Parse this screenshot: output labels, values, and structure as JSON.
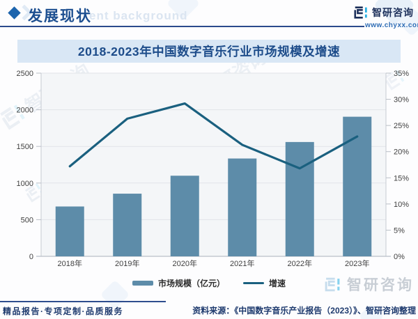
{
  "header": {
    "title": "发展现状",
    "ghost_text": "ent background",
    "brand_name": "智研咨询",
    "brand_url": "www.chyxx.com"
  },
  "watermark": {
    "text": "智研咨询"
  },
  "chart_data": {
    "type": "bar+line",
    "title": "2018-2023年中国数字音乐行业市场规模及增速",
    "categories": [
      "2018年",
      "2019年",
      "2020年",
      "2021年",
      "2022年",
      "2023年"
    ],
    "series": [
      {
        "name": "市场规模（亿元）",
        "type": "bar",
        "axis": "left",
        "unit": "亿元",
        "color": "#5d8ca9",
        "values": [
          680,
          855,
          1100,
          1335,
          1560,
          1905
        ]
      },
      {
        "name": "增速",
        "type": "line",
        "axis": "right",
        "unit": "%",
        "color": "#1a607f",
        "values": [
          17.2,
          26.3,
          29.2,
          21.3,
          16.8,
          22.9
        ]
      }
    ],
    "left_axis": {
      "min": 0,
      "max": 2500,
      "step": 500,
      "ticks": [
        "0",
        "500",
        "1000",
        "1500",
        "2000",
        "2500"
      ]
    },
    "right_axis": {
      "min": 0,
      "max": 35,
      "step": 5,
      "ticks": [
        "0%",
        "5%",
        "10%",
        "15%",
        "20%",
        "25%",
        "30%",
        "35%"
      ]
    },
    "grid": true,
    "legend_position": "bottom",
    "plot_bg": "#f4f6f8"
  },
  "footer": {
    "tagline": "精品报告·专项定制·品质服务",
    "source": "资料来源：《中国数字音乐产业报告（2023）》、智研咨询整理"
  },
  "colors": {
    "accent_blue": "#1c64ad",
    "navy_text": "#1d4f90",
    "banner_bg": "#d9e7f5",
    "bar": "#5d8ca9",
    "line": "#1a607f",
    "logo_cyan": "#29b0e3",
    "logo_navy": "#1c2f5a"
  }
}
